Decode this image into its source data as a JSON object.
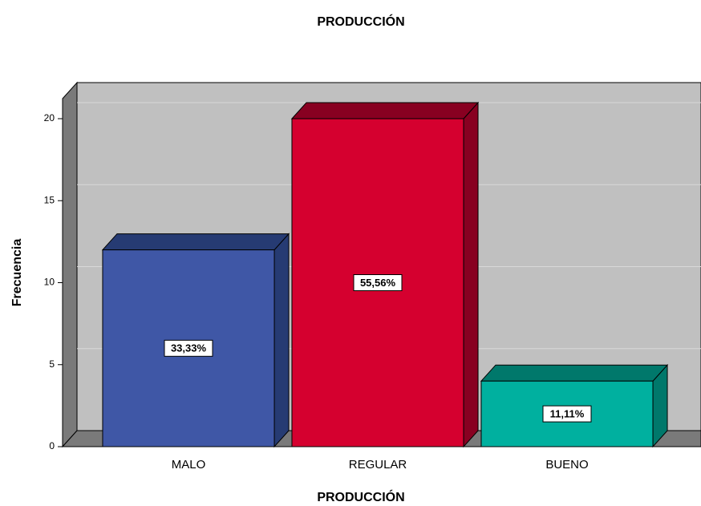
{
  "chart_data": {
    "type": "bar3d",
    "title": "PRODUCCIÓN",
    "x_label": "PRODUCCIÓN",
    "y_label": "Frecuencia",
    "categories": [
      "MALO",
      "REGULAR",
      "BUENO"
    ],
    "values": [
      12,
      20,
      4
    ],
    "annotations": [
      "33,33%",
      "55,56%",
      "11,11%"
    ],
    "colors": [
      "#3f57a6",
      "#d5002f",
      "#00b09f"
    ],
    "top_colors": [
      "#263b73",
      "#880021",
      "#00786b"
    ],
    "ylim": [
      0,
      21
    ],
    "yticks": [
      0,
      5,
      10,
      15,
      20
    ],
    "grid": true
  }
}
